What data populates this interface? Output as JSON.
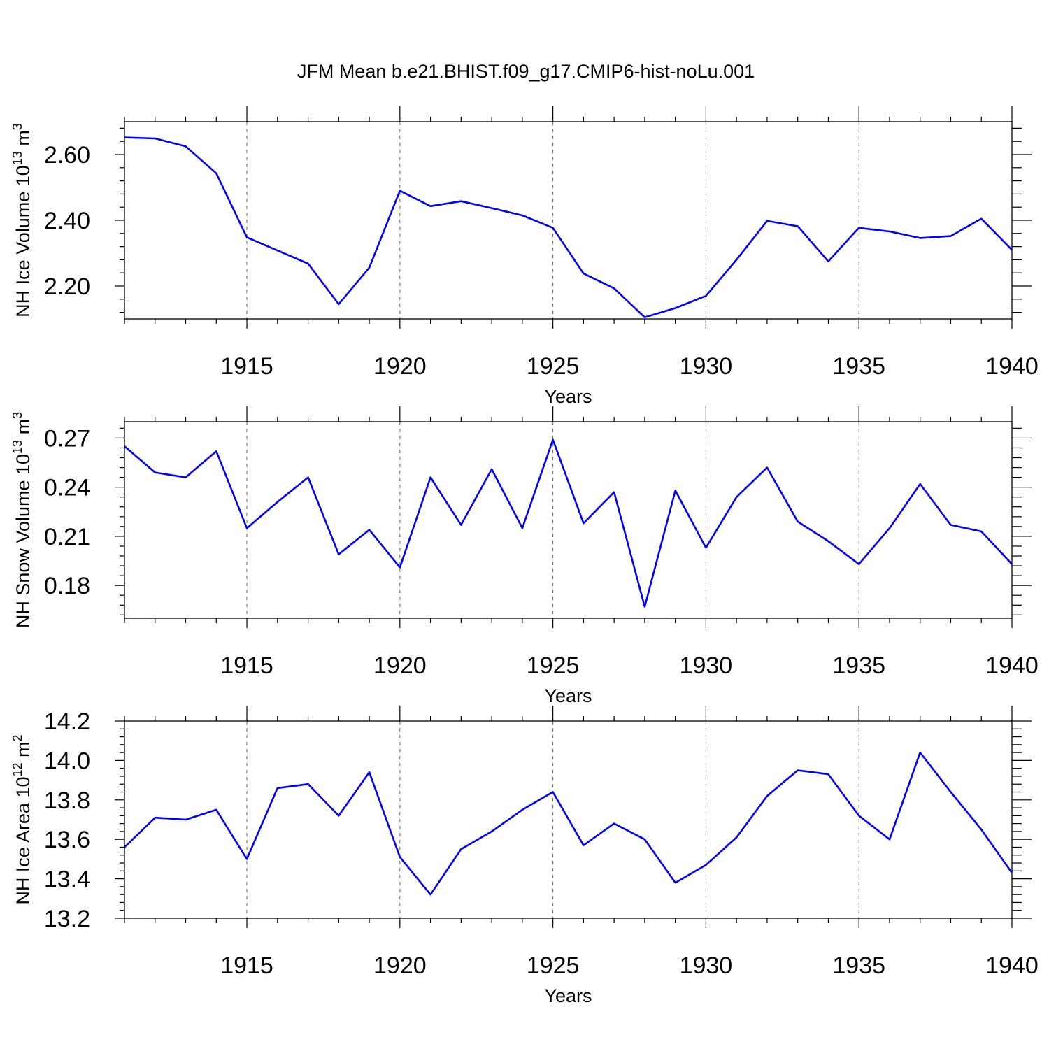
{
  "title": "JFM Mean b.e21.BHIST.f09_g17.CMIP6-hist-noLu.001",
  "line_color": "#0000ff",
  "chart_data": [
    {
      "type": "line",
      "ylabel": "NH Ice Volume 10",
      "ylabel_exp": "13",
      "ylabel_unit": " m",
      "ylabel_unit_exp": "3",
      "xlabel": "Years",
      "xlim": [
        1911,
        1940
      ],
      "ylim": [
        2.1,
        2.7
      ],
      "xticks": [
        "1915",
        "1920",
        "1925",
        "1930",
        "1935",
        "1940"
      ],
      "yticks": [
        "2.20",
        "2.40",
        "2.60"
      ],
      "grid": "vertical dashed at major x ticks",
      "x": [
        1911,
        1912,
        1913,
        1914,
        1915,
        1916,
        1917,
        1918,
        1919,
        1920,
        1921,
        1922,
        1923,
        1924,
        1925,
        1926,
        1927,
        1928,
        1929,
        1930,
        1931,
        1932,
        1933,
        1934,
        1935,
        1936,
        1937,
        1938,
        1939,
        1940
      ],
      "series": [
        {
          "values": [
            2.652,
            2.649,
            2.625,
            2.543,
            2.348,
            2.308,
            2.268,
            2.145,
            2.256,
            2.49,
            2.443,
            2.458,
            2.437,
            2.415,
            2.377,
            2.238,
            2.193,
            2.105,
            2.133,
            2.17,
            2.28,
            2.398,
            2.382,
            2.275,
            2.377,
            2.366,
            2.346,
            2.352,
            2.405,
            2.31
          ]
        }
      ]
    },
    {
      "type": "line",
      "ylabel": "NH Snow Volume 10",
      "ylabel_exp": "13",
      "ylabel_unit": " m",
      "ylabel_unit_exp": "3",
      "xlabel": "Years",
      "xlim": [
        1911,
        1940
      ],
      "ylim": [
        0.16,
        0.28
      ],
      "xticks": [
        "1915",
        "1920",
        "1925",
        "1930",
        "1935",
        "1940"
      ],
      "yticks": [
        "0.18",
        "0.21",
        "0.24",
        "0.27"
      ],
      "grid": "vertical dashed at major x ticks",
      "x": [
        1911,
        1912,
        1913,
        1914,
        1915,
        1916,
        1917,
        1918,
        1919,
        1920,
        1921,
        1922,
        1923,
        1924,
        1925,
        1926,
        1927,
        1928,
        1929,
        1930,
        1931,
        1932,
        1933,
        1934,
        1935,
        1936,
        1937,
        1938,
        1939,
        1940
      ],
      "series": [
        {
          "values": [
            0.265,
            0.249,
            0.246,
            0.262,
            0.215,
            0.231,
            0.246,
            0.199,
            0.214,
            0.191,
            0.246,
            0.217,
            0.251,
            0.215,
            0.269,
            0.218,
            0.237,
            0.167,
            0.238,
            0.203,
            0.234,
            0.252,
            0.219,
            0.207,
            0.193,
            0.215,
            0.242,
            0.217,
            0.213,
            0.193
          ]
        }
      ]
    },
    {
      "type": "line",
      "ylabel": "NH Ice Area 10",
      "ylabel_exp": "12",
      "ylabel_unit": " m",
      "ylabel_unit_exp": "2",
      "xlabel": "Years",
      "xlim": [
        1911,
        1940
      ],
      "ylim": [
        13.2,
        14.2
      ],
      "xticks": [
        "1915",
        "1920",
        "1925",
        "1930",
        "1935",
        "1940"
      ],
      "yticks": [
        "13.2",
        "13.4",
        "13.6",
        "13.8",
        "14.0",
        "14.2"
      ],
      "grid": "vertical dashed at major x ticks",
      "x": [
        1911,
        1912,
        1913,
        1914,
        1915,
        1916,
        1917,
        1918,
        1919,
        1920,
        1921,
        1922,
        1923,
        1924,
        1925,
        1926,
        1927,
        1928,
        1929,
        1930,
        1931,
        1932,
        1933,
        1934,
        1935,
        1936,
        1937,
        1938,
        1939,
        1940
      ],
      "series": [
        {
          "values": [
            13.56,
            13.71,
            13.7,
            13.75,
            13.5,
            13.86,
            13.88,
            13.72,
            13.94,
            13.51,
            13.32,
            13.55,
            13.64,
            13.75,
            13.84,
            13.57,
            13.68,
            13.6,
            13.38,
            13.47,
            13.61,
            13.82,
            13.95,
            13.93,
            13.72,
            13.6,
            14.04,
            13.84,
            13.65,
            13.43
          ]
        }
      ]
    }
  ]
}
